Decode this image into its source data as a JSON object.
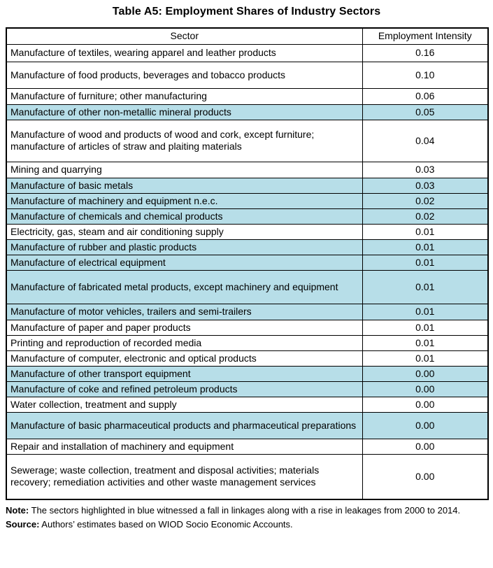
{
  "title": "Table A5: Employment Shares of Industry Sectors",
  "table": {
    "columns": [
      "Sector",
      "Employment Intensity"
    ],
    "highlight_color": "#b7dee8",
    "rows": [
      {
        "sector": "Manufacture of textiles, wearing apparel and leather products",
        "value": "0.16",
        "highlighted": false
      },
      {
        "sector": "Manufacture of food products, beverages and tobacco products",
        "value": "0.10",
        "highlighted": false
      },
      {
        "sector": "Manufacture of furniture; other manufacturing",
        "value": "0.06",
        "highlighted": false
      },
      {
        "sector": "Manufacture of other non-metallic mineral products",
        "value": "0.05",
        "highlighted": true
      },
      {
        "sector": "Manufacture of wood and products of wood and cork, except furniture; manufacture of articles of straw and plaiting materials",
        "value": "0.04",
        "highlighted": false
      },
      {
        "sector": "Mining and quarrying",
        "value": "0.03",
        "highlighted": false
      },
      {
        "sector": "Manufacture of basic metals",
        "value": "0.03",
        "highlighted": true
      },
      {
        "sector": "Manufacture of machinery and equipment n.e.c.",
        "value": "0.02",
        "highlighted": true
      },
      {
        "sector": "Manufacture of chemicals and chemical products",
        "value": "0.02",
        "highlighted": true
      },
      {
        "sector": "Electricity, gas, steam and air conditioning supply",
        "value": "0.01",
        "highlighted": false
      },
      {
        "sector": "Manufacture of rubber and plastic products",
        "value": "0.01",
        "highlighted": true
      },
      {
        "sector": "Manufacture of electrical equipment",
        "value": "0.01",
        "highlighted": true
      },
      {
        "sector": "Manufacture of fabricated metal products, except machinery and equipment",
        "value": "0.01",
        "highlighted": true
      },
      {
        "sector": "Manufacture of motor vehicles, trailers and semi-trailers",
        "value": "0.01",
        "highlighted": true
      },
      {
        "sector": "Manufacture of paper and paper products",
        "value": "0.01",
        "highlighted": false
      },
      {
        "sector": "Printing and reproduction of recorded media",
        "value": "0.01",
        "highlighted": false
      },
      {
        "sector": "Manufacture of computer, electronic and optical products",
        "value": "0.01",
        "highlighted": false
      },
      {
        "sector": "Manufacture of other transport equipment",
        "value": "0.00",
        "highlighted": true
      },
      {
        "sector": "Manufacture of coke and refined petroleum products",
        "value": "0.00",
        "highlighted": true
      },
      {
        "sector": "Water collection, treatment and supply",
        "value": "0.00",
        "highlighted": false
      },
      {
        "sector": "Manufacture of basic pharmaceutical products and pharmaceutical preparations",
        "value": "0.00",
        "highlighted": true
      },
      {
        "sector": "Repair and installation of machinery and equipment",
        "value": "0.00",
        "highlighted": false
      },
      {
        "sector": "Sewerage; waste collection, treatment and disposal activities; materials recovery; remediation activities and other waste management services",
        "value": "0.00",
        "highlighted": false
      }
    ]
  },
  "notes": [
    {
      "label": "Note:",
      "text": " The sectors highlighted in blue witnessed a fall in linkages along with a rise in leakages from 2000 to 2014."
    },
    {
      "label": "Source:",
      "text": " Authors’ estimates based on WIOD Socio Economic Accounts."
    }
  ]
}
